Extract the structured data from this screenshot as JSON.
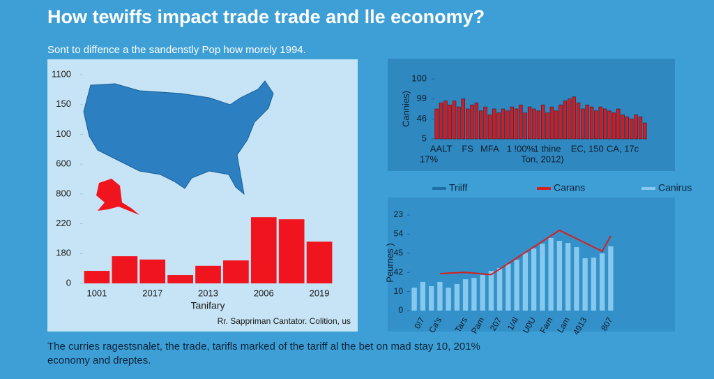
{
  "title": "How tewiffs impact trade trade and lle economy?",
  "subtitle": "Sont to diffence a the sandenstly Pop how morely 1994.",
  "footer": [
    "The curries ragestsnalet, the trade, tarifls marked of the tariff al the bet on mad stay 10, 201%",
    "economy and dreptes."
  ],
  "legend": [
    {
      "label": "Triiff",
      "color": "#1e6fa8"
    },
    {
      "label": "Carans",
      "color": "#d42020"
    },
    {
      "label": "Canirus",
      "color": "#86c8ee"
    }
  ],
  "chart_data": [
    {
      "type": "bar",
      "xlabel": "Tanifary",
      "source": "Rr. Sappriman Cantator. Colition, us",
      "categories": [
        "1001",
        null,
        "2017",
        null,
        "2013",
        null,
        "2006",
        null,
        "2019"
      ],
      "values": [
        0.42,
        0.91,
        0.8,
        0.28,
        0.59,
        0.77,
        2.22,
        2.15,
        1.4
      ],
      "color": "#f0141e",
      "ylim": [
        0,
        7
      ],
      "yticks": [
        0,
        {
          "value": 1,
          "label": "180"
        },
        {
          "value": 2,
          "label": "220"
        },
        {
          "value": 3,
          "label": "800"
        },
        {
          "value": 4,
          "label": "600"
        },
        {
          "value": 5,
          "label": "100"
        },
        {
          "value": 6,
          "label": "150"
        },
        {
          "value": 7,
          "label": "1100"
        }
      ]
    },
    {
      "type": "bar",
      "ylabel": "Cannies)",
      "categories": [
        null,
        "AALT",
        null,
        null,
        null,
        null,
        null,
        "FS",
        null,
        null,
        null,
        null,
        "MFA",
        null,
        null,
        null,
        null,
        null,
        null,
        "1 !00%",
        null,
        null,
        null,
        null,
        null,
        "1 thine",
        null,
        null,
        null,
        null,
        null,
        null,
        null,
        null,
        "EC, 150",
        null,
        null,
        null,
        null,
        null,
        null,
        null,
        "CA, 17c",
        null,
        null,
        null,
        null,
        null
      ],
      "annotations": [
        "17%",
        "Ton, 2012)"
      ],
      "values": [
        1.5,
        1.8,
        1.9,
        1.7,
        1.9,
        1.6,
        2.0,
        1.5,
        1.7,
        1.8,
        1.4,
        1.6,
        1.2,
        1.5,
        1.3,
        1.5,
        1.4,
        1.6,
        1.5,
        1.7,
        1.3,
        1.6,
        1.5,
        1.4,
        1.7,
        1.3,
        1.6,
        1.4,
        1.7,
        1.9,
        2.0,
        2.1,
        1.8,
        1.5,
        1.7,
        1.6,
        1.4,
        1.6,
        1.5,
        1.4,
        1.3,
        1.5,
        1.2,
        1.1,
        1.0,
        1.2,
        1.1,
        0.8
      ],
      "color": "#c8202a",
      "ylim": [
        0,
        3
      ],
      "yticks": [
        {
          "value": 0,
          "label": "5"
        },
        {
          "value": 1,
          "label": "46"
        },
        {
          "value": 2,
          "label": "99"
        },
        {
          "value": 3,
          "label": "100"
        }
      ]
    },
    {
      "type": "combo",
      "ylabel": "Peurnes )",
      "categories": [
        null,
        "0!7",
        null,
        "Ca's",
        null,
        null,
        "Tars",
        null,
        "Pam",
        null,
        "207",
        null,
        "1/4l",
        null,
        "U0U",
        null,
        "Fam",
        null,
        "Lam",
        null,
        "4913",
        null,
        null,
        "807"
      ],
      "series": [
        {
          "name": "Canirus",
          "type": "bar",
          "color": "#86c8ee",
          "values": [
            1.2,
            1.5,
            1.28,
            1.5,
            1.2,
            1.39,
            1.64,
            1.71,
            1.86,
            2.08,
            2.23,
            2.45,
            2.66,
            3.03,
            3.25,
            3.5,
            3.8,
            3.65,
            3.54,
            3.32,
            2.74,
            2.77,
            2.99,
            3.36
          ]
        },
        {
          "name": "Carans",
          "type": "line",
          "color": "#d42020",
          "values": [
            null,
            null,
            null,
            1.93,
            1.96,
            1.98,
            2.0,
            1.96,
            1.92,
            1.88,
            2.17,
            2.46,
            2.75,
            3.04,
            3.33,
            3.62,
            3.91,
            4.2,
            3.98,
            3.76,
            3.54,
            3.32,
            3.1,
            3.9
          ]
        }
      ],
      "ylim": [
        0,
        5
      ],
      "yticks": [
        0,
        {
          "value": 1,
          "label": "10"
        },
        {
          "value": 2,
          "label": "42"
        },
        {
          "value": 3,
          "label": "45"
        },
        {
          "value": 4,
          "label": "54"
        },
        {
          "value": 5,
          "label": "23"
        }
      ]
    }
  ]
}
